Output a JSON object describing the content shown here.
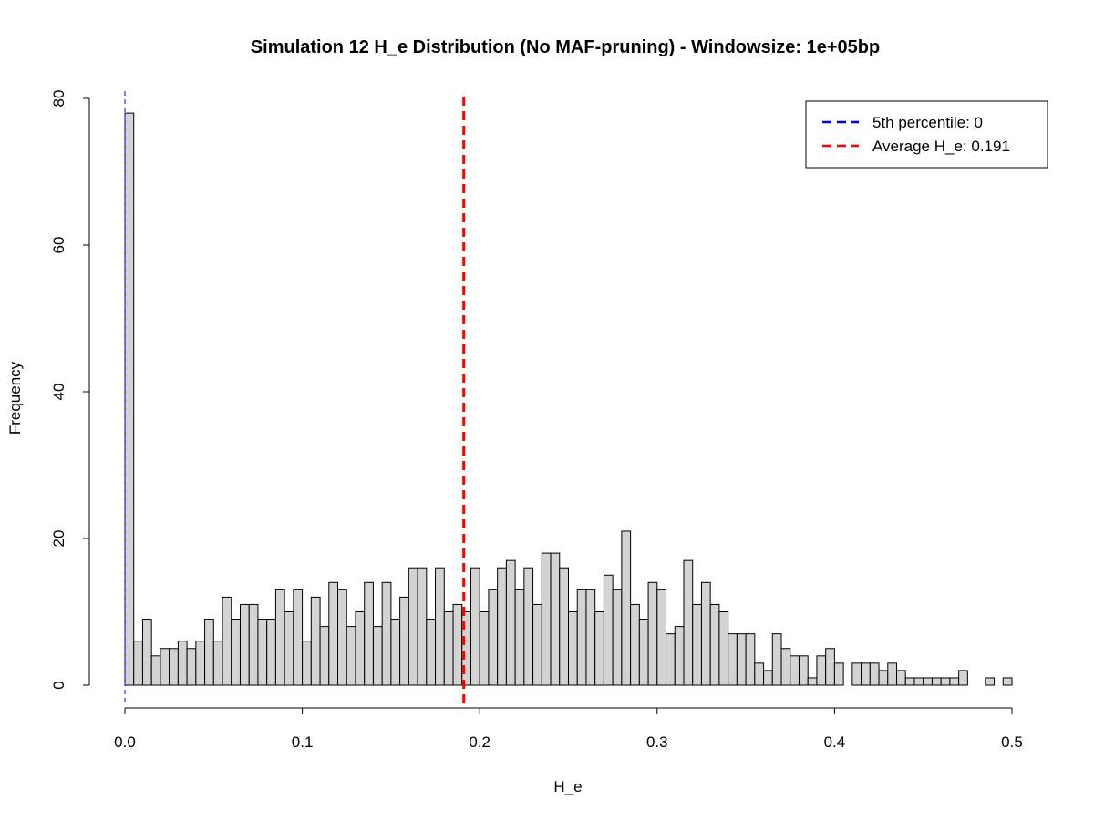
{
  "chart_data": {
    "type": "bar",
    "title": "Simulation 12 H_e Distribution (No MAF-pruning) - Windowsize: 1e+05bp",
    "xlabel": "H_e",
    "ylabel": "Frequency",
    "xlim": [
      0,
      0.5
    ],
    "ylim": [
      0,
      80
    ],
    "x_ticks": [
      "0.0",
      "0.1",
      "0.2",
      "0.3",
      "0.4",
      "0.5"
    ],
    "y_ticks": [
      "0",
      "20",
      "40",
      "60",
      "80"
    ],
    "bin_width": 0.005,
    "bin_start": 0,
    "frequencies": [
      78,
      6,
      9,
      4,
      5,
      5,
      6,
      5,
      6,
      9,
      6,
      12,
      9,
      11,
      11,
      9,
      9,
      13,
      10,
      13,
      6,
      12,
      8,
      14,
      13,
      8,
      10,
      14,
      8,
      14,
      9,
      12,
      16,
      16,
      9,
      16,
      10,
      11,
      10,
      16,
      10,
      13,
      16,
      17,
      13,
      16,
      11,
      18,
      18,
      16,
      10,
      13,
      13,
      10,
      15,
      13,
      21,
      11,
      9,
      14,
      13,
      7,
      8,
      17,
      11,
      14,
      11,
      10,
      7,
      7,
      7,
      3,
      2,
      7,
      5,
      4,
      4,
      1,
      4,
      5,
      3,
      0,
      3,
      3,
      3,
      2,
      3,
      2,
      1,
      1,
      1,
      1,
      1,
      1,
      2,
      0,
      0,
      1,
      0,
      1
    ],
    "bar_fill": "#d3d3d3",
    "bar_stroke": "#000000",
    "reference_lines": [
      {
        "name": "5th percentile",
        "value": 0,
        "color": "#0000ff",
        "style": "dashed"
      },
      {
        "name": "Average H_e",
        "value": 0.191,
        "color": "#ff0000",
        "style": "dashed"
      }
    ],
    "legend": {
      "placement": "top-right",
      "entries": [
        {
          "label": "5th percentile:  0",
          "color": "#0000ff"
        },
        {
          "label": "Average H_e:  0.191",
          "color": "#ff0000"
        }
      ]
    },
    "grid": false
  }
}
